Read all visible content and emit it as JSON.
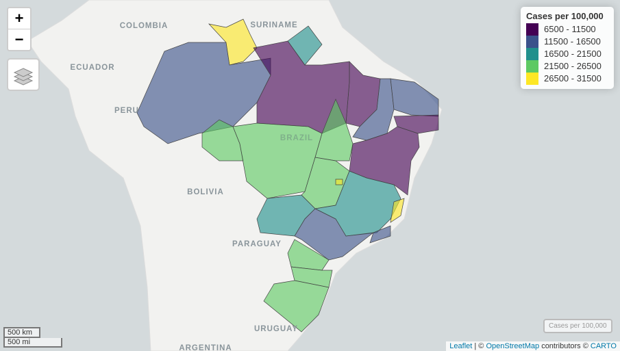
{
  "map": {
    "country_labels": [
      "COLOMBIA",
      "SURINAME",
      "ECUADOR",
      "PERU",
      "BRAZIL",
      "BOLIVIA",
      "PARAGUAY",
      "URUGUAY",
      "ARGENTINA"
    ],
    "legend": {
      "title": "Cases per 100,000",
      "bins": [
        "6500 - 11500",
        "11500 - 16500",
        "16500 - 21500",
        "21500 - 26500",
        "26500 - 31500"
      ],
      "colors": [
        "#440154",
        "#3b528b",
        "#21908c",
        "#5dc963",
        "#fde725"
      ]
    },
    "controls": {
      "zoom_in": "+",
      "zoom_out": "−",
      "layer_button": "Cases per 100,000"
    },
    "scale": {
      "metric": "500 km",
      "imperial": "500 mi"
    },
    "attribution": {
      "leaflet": "Leaflet",
      "sep": "| ©",
      "osm": "OpenStreetMap",
      "contributors": "contributors ©",
      "carto": "CARTO"
    }
  }
}
